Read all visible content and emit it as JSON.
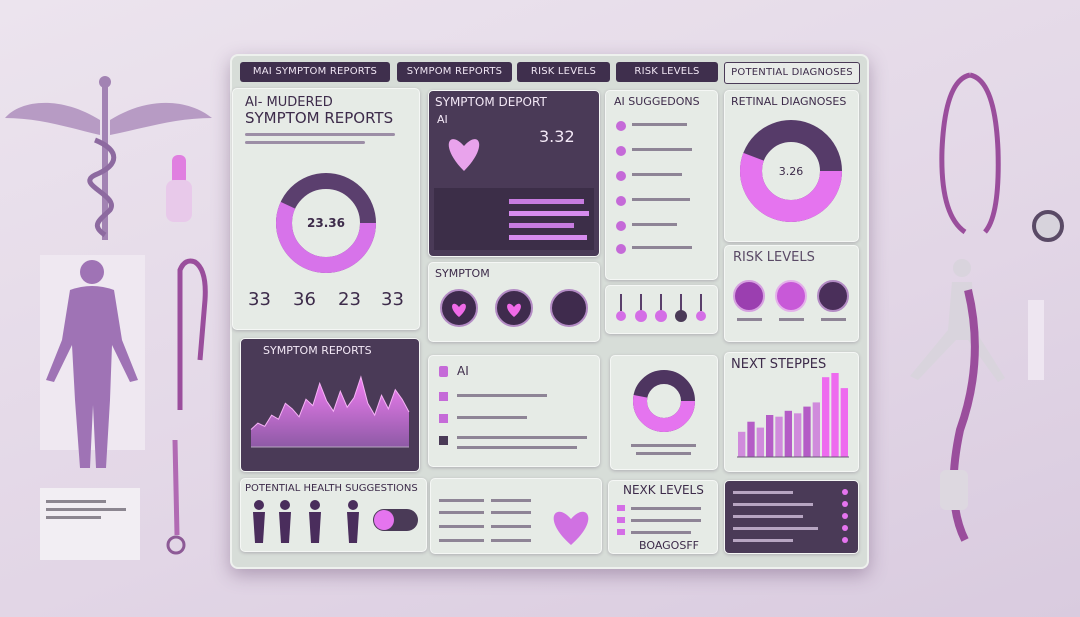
{
  "tabs": [
    "MAI SYMPTOM REPORTS",
    "SYMPOM REPORTS",
    "RISK LEVELS",
    "RISK LEVELS",
    "POTENTIAL DIAGNOSES"
  ],
  "ai_reports": {
    "title_1": "AI- MUDERED",
    "title_2": "SYMPTOM REPORTS",
    "donut_label": "23.36",
    "stats": [
      "33",
      "36",
      "23",
      "33"
    ]
  },
  "symptom_report": {
    "title": "SYMPTOM DEPORT",
    "ai": "AI",
    "value": "3.32"
  },
  "ai_suggestions": {
    "title": "AI SUGGEDONS"
  },
  "retinal": {
    "title": "RETINAL DIAGNOSES",
    "value": "3.26"
  },
  "symptom": {
    "title": "SYMPTOM"
  },
  "risk_levels": {
    "title": "RISK LEVELS"
  },
  "symptom_reports": {
    "title": "SYMPTOM REPORTS",
    "values": [
      22,
      30,
      26,
      40,
      35,
      55,
      48,
      38,
      60,
      52,
      80,
      58,
      45,
      70,
      50,
      62,
      88,
      55,
      40,
      65,
      48,
      72,
      60,
      44
    ]
  },
  "ai_panel": {
    "title": "AI"
  },
  "next_steps": {
    "title": "NEXT STEPPES",
    "values": [
      30,
      42,
      35,
      50,
      48,
      55,
      52,
      60,
      65,
      95,
      100,
      82
    ]
  },
  "health": {
    "title": "POTENTIAL HEALTH SUGGESTIONS"
  },
  "next_levels": {
    "title": "NEXK LEVELS",
    "code": "BOAGOSFF"
  }
}
